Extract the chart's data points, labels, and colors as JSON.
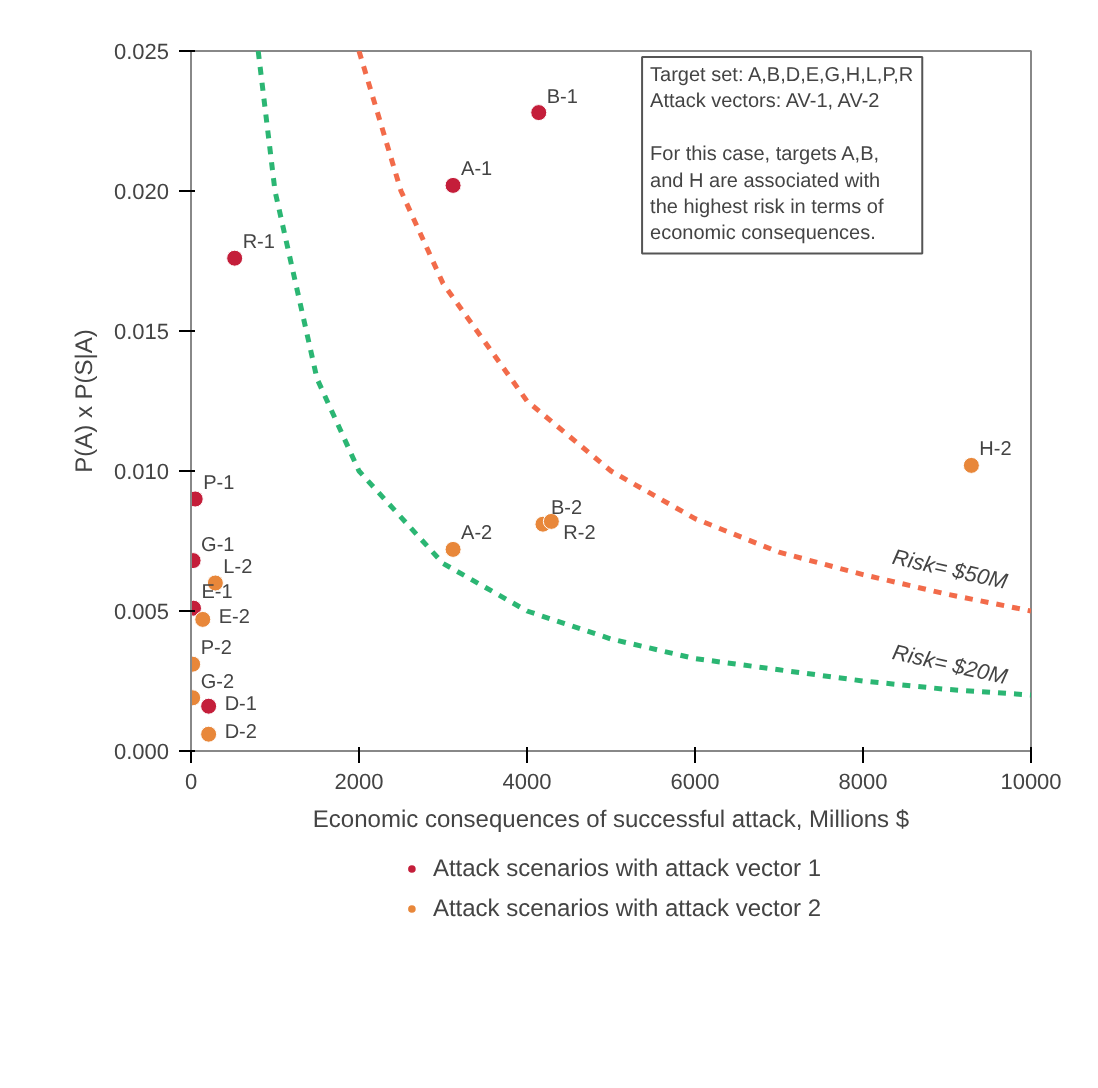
{
  "chart_data": {
    "type": "scatter",
    "xlabel": "Economic consequences of successful attack, Millions $",
    "ylabel": "P(A) x P(S|A)",
    "xlim": [
      0,
      10000
    ],
    "ylim": [
      0,
      0.025
    ],
    "xticks": [
      0,
      2000,
      4000,
      6000,
      8000,
      10000
    ],
    "yticks": [
      {
        "value": 0,
        "label": "0.000"
      },
      {
        "value": 0.005,
        "label": "0.005"
      },
      {
        "value": 0.01,
        "label": "0.010"
      },
      {
        "value": 0.015,
        "label": "0.015"
      },
      {
        "value": 0.02,
        "label": "0.020"
      },
      {
        "value": 0.025,
        "label": "0.025"
      }
    ],
    "grid": false,
    "legend": "bottom",
    "marker": "circle",
    "series": [
      {
        "name": "Attack scenarios with attack vector 1",
        "color": "#c41e3a",
        "x": [
          4140,
          3120,
          520,
          50,
          25,
          30,
          210
        ],
        "values": [
          0.0228,
          0.0202,
          0.0176,
          0.009,
          0.0068,
          0.0051,
          0.0016
        ]
      },
      {
        "name": "Attack scenarios with attack vector 2",
        "color": "#e8873a",
        "x": [
          9290,
          3120,
          4190,
          4290,
          290,
          140,
          20,
          20,
          210
        ],
        "values": [
          0.0102,
          0.0072,
          0.0081,
          0.0082,
          0.006,
          0.0047,
          0.0031,
          0.0019,
          0.0006
        ]
      },
      {
        "name": "Risk= $50M",
        "type": "line",
        "line_style": "dashed",
        "marker": "none",
        "color": "#f26b4a",
        "x": [
          2000,
          2500,
          3000,
          4000,
          5000,
          6000,
          7000,
          8000,
          9000,
          10000
        ],
        "values": [
          0.025,
          0.02,
          0.0167,
          0.0125,
          0.01,
          0.0083,
          0.0071,
          0.0063,
          0.0056,
          0.005
        ]
      },
      {
        "name": "Risk= $20M",
        "type": "line",
        "line_style": "dashed",
        "marker": "none",
        "color": "#2bb673",
        "x": [
          800,
          1000,
          1500,
          2000,
          3000,
          4000,
          5000,
          6000,
          7000,
          8000,
          9000,
          10000
        ],
        "values": [
          0.025,
          0.02,
          0.0133,
          0.01,
          0.0067,
          0.005,
          0.004,
          0.0033,
          0.0029,
          0.0025,
          0.0022,
          0.002
        ]
      }
    ],
    "annotations": [
      "Target set: A,B,D,E,G,H,L,P,R",
      "Attack vectors: AV-1, AV-2",
      "For this case, targets A,B,\nand H are associated with\nthe highest risk in terms of\neconomic consequences.",
      {
        "text": "B-1",
        "x": 4140,
        "y": 0.0228
      },
      {
        "text": "A-1",
        "x": 3120,
        "y": 0.0202
      },
      {
        "text": "R-1",
        "x": 520,
        "y": 0.0176
      },
      {
        "text": "P-1",
        "x": 50,
        "y": 0.009
      },
      {
        "text": "G-1",
        "x": 25,
        "y": 0.0068
      },
      {
        "text": "E-1",
        "x": 30,
        "y": 0.0051
      },
      {
        "text": "G-2",
        "x": 20,
        "y": 0.0019
      },
      {
        "text": "D-1",
        "x": 210,
        "y": 0.0016
      },
      {
        "text": "H-2",
        "x": 9290,
        "y": 0.0102
      },
      {
        "text": "A-2",
        "x": 3120,
        "y": 0.0072
      },
      {
        "text": "B-2",
        "x": 4190,
        "y": 0.0081
      },
      {
        "text": "R-2",
        "x": 4290,
        "y": 0.0082
      },
      {
        "text": "L-2",
        "x": 290,
        "y": 0.006
      },
      {
        "text": "E-2",
        "x": 140,
        "y": 0.0047
      },
      {
        "text": "P-2",
        "x": 20,
        "y": 0.0031
      },
      {
        "text": "D-2",
        "x": 210,
        "y": 0.0006
      }
    ]
  }
}
